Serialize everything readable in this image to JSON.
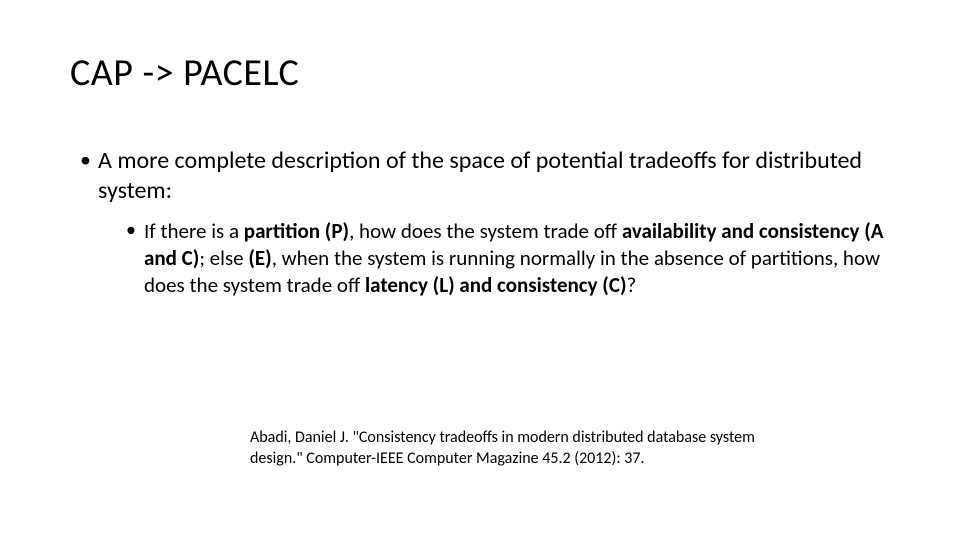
{
  "slide": {
    "title": "CAP -> PACELC",
    "bullet1": "A more complete description of the space of potential tradeoffs for distributed system:",
    "sub": {
      "t1": "If there is a ",
      "b1": "partition (P)",
      "t2": ", how does the system trade off ",
      "b2": "availability and consistency (A and C)",
      "t3": "; else ",
      "b3": "(E)",
      "t4": ", when the system is running normally in the absence of partitions, how does the system trade off ",
      "b4": "latency (L) and consistency (C)",
      "t5": "?"
    },
    "citation": "Abadi, Daniel J. \"Consistency tradeoffs in modern distributed database system design.\" Computer-IEEE Computer Magazine 45.2 (2012): 37."
  },
  "style": {
    "background_color": "#ffffff",
    "text_color": "#000000",
    "title_fontsize": 38,
    "body_fontsize": 24,
    "sub_fontsize": 21,
    "citation_fontsize": 16,
    "font_family": "Calibri"
  }
}
